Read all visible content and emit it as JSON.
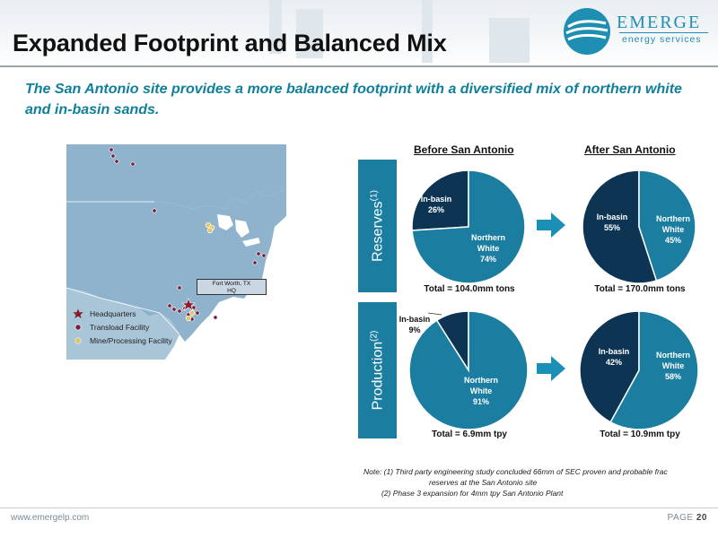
{
  "header": {
    "title": "Expanded Footprint and Balanced Mix",
    "logo_name": "EMERGE",
    "logo_tagline": "energy services"
  },
  "subtitle": "The San Antonio site provides a more balanced footprint with a diversified mix of northern white and in-basin sands.",
  "map": {
    "callout_line1": "Fort Worth, TX",
    "callout_line2": "HQ",
    "legend": [
      {
        "label": "Headquarters",
        "icon": "star-icon",
        "color": "#8b1a2e"
      },
      {
        "label": "Transload Facility",
        "icon": "dot-icon",
        "color": "#7a1f3d"
      },
      {
        "label": "Mine/Processing Facility",
        "icon": "dot-icon",
        "color": "#e2c56a"
      }
    ]
  },
  "columns": {
    "before": "Before San Antonio",
    "after": "After San Antonio"
  },
  "rows": {
    "reserves": {
      "label": "Reserves",
      "footnote": "(1)"
    },
    "production": {
      "label": "Production",
      "footnote": "(2)"
    }
  },
  "colors": {
    "northern_white": "#1b7da0",
    "in_basin": "#0d3553",
    "arrow": "#1b8fb5"
  },
  "chart_data": [
    {
      "type": "pie",
      "title": "Before San Antonio",
      "row": "Reserves",
      "slices": [
        {
          "label": "Northern White",
          "value": 74,
          "display": "74%"
        },
        {
          "label": "In-basin",
          "value": 26,
          "display": "26%"
        }
      ],
      "total": "Total = 104.0mm tons"
    },
    {
      "type": "pie",
      "title": "After San Antonio",
      "row": "Reserves",
      "slices": [
        {
          "label": "Northern White",
          "value": 45,
          "display": "45%"
        },
        {
          "label": "In-basin",
          "value": 55,
          "display": "55%"
        }
      ],
      "total": "Total = 170.0mm tons"
    },
    {
      "type": "pie",
      "title": "Before San Antonio",
      "row": "Production",
      "slices": [
        {
          "label": "Northern White",
          "value": 91,
          "display": "91%"
        },
        {
          "label": "In-basin",
          "value": 9,
          "display": "9%"
        }
      ],
      "total": "Total = 6.9mm tpy"
    },
    {
      "type": "pie",
      "title": "After San Antonio",
      "row": "Production",
      "slices": [
        {
          "label": "Northern White",
          "value": 58,
          "display": "58%"
        },
        {
          "label": "In-basin",
          "value": 42,
          "display": "42%"
        }
      ],
      "total": "Total = 10.9mm tpy"
    }
  ],
  "notes": {
    "line1": "Note: (1) Third party engineering study concluded 66mm of SEC proven and probable frac",
    "line2": "reserves at the San Antonio site",
    "line3": "(2) Phase 3 expansion for 4mm tpy San Antonio Plant"
  },
  "footer": {
    "url": "www.emergelp.com",
    "page_label": "PAGE",
    "page_number": "20"
  }
}
